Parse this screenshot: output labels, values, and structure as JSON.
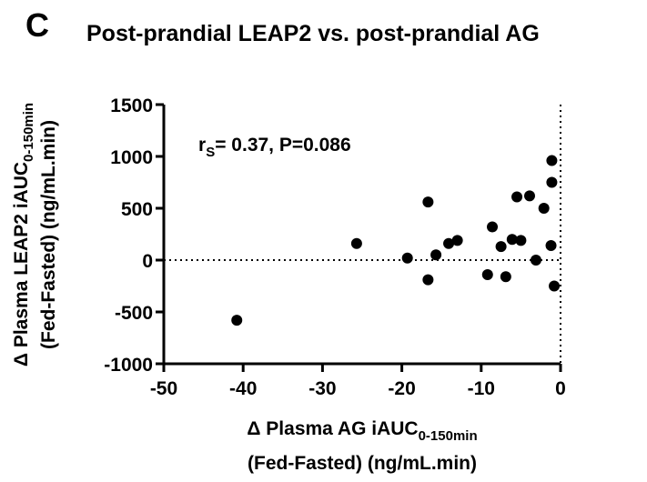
{
  "chart_data": {
    "type": "scatter",
    "panel_label": "C",
    "title": "Post-prandial LEAP2 vs. post-prandial AG",
    "annotation": {
      "text": "r",
      "subscript": "S",
      "rest": "= 0.37, P=0.086"
    },
    "xlabel": {
      "text": "Δ Plasma AG iAUC",
      "subscript": "0-150min",
      "line2": "(Fed-Fasted) (ng/mL.min)"
    },
    "ylabel": {
      "text": "Δ Plasma LEAP2 iAUC",
      "subscript": "0-150min",
      "line2": "(Fed-Fasted) (ng/mL.min)"
    },
    "xlim": [
      -50,
      0
    ],
    "ylim": [
      -1000,
      1500
    ],
    "xticks": [
      -50,
      -40,
      -30,
      -20,
      -10,
      0
    ],
    "yticks": [
      -1000,
      -500,
      0,
      500,
      1000,
      1500
    ],
    "zero_lines": true,
    "color": "#000000",
    "x": [
      -40.8,
      -25.7,
      -19.3,
      -16.7,
      -16.7,
      -15.7,
      -14.1,
      -13,
      -9.2,
      -8.6,
      -7.5,
      -6.9,
      -6.1,
      -5.5,
      -5,
      -3.9,
      -3.1,
      -2.1,
      -1.1,
      -1.1,
      -1.2,
      -0.8
    ],
    "values": [
      -580,
      160,
      20,
      560,
      -190,
      50,
      160,
      190,
      -140,
      320,
      130,
      -160,
      200,
      610,
      190,
      620,
      0,
      500,
      960,
      750,
      140,
      -250
    ]
  }
}
